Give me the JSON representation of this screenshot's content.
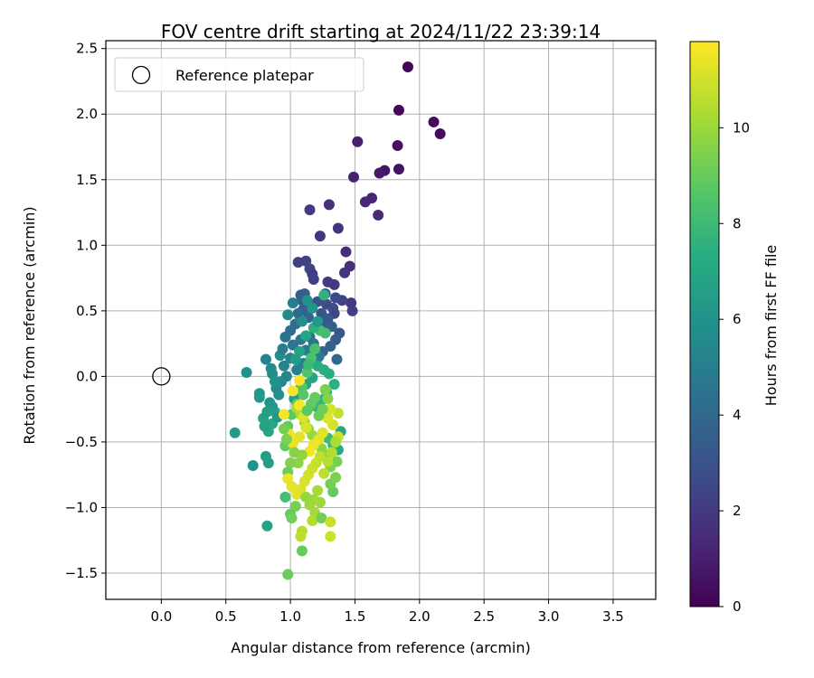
{
  "chart_data": {
    "type": "scatter",
    "title": "FOV centre drift starting at 2024/11/22 23:39:14",
    "xlabel": "Angular distance from reference (arcmin)",
    "ylabel": "Rotation from reference (arcmin)",
    "xlim": [
      -0.43,
      3.83
    ],
    "ylim": [
      -1.7,
      2.56
    ],
    "xticks": [
      0.0,
      0.5,
      1.0,
      1.5,
      2.0,
      2.5,
      3.0,
      3.5
    ],
    "xtick_labels": [
      "0.0",
      "0.5",
      "1.0",
      "1.5",
      "2.0",
      "2.5",
      "3.0",
      "3.5"
    ],
    "yticks": [
      -1.5,
      -1.0,
      -0.5,
      0.0,
      0.5,
      1.0,
      1.5,
      2.0,
      2.5
    ],
    "ytick_labels": [
      "−1.5",
      "−1.0",
      "−0.5",
      "0.0",
      "0.5",
      "1.0",
      "1.5",
      "2.0",
      "2.5"
    ],
    "grid": true,
    "legend": {
      "position": "top-left",
      "entries": [
        "Reference platepar"
      ]
    },
    "reference_point": {
      "x": 0.0,
      "y": 0.0
    },
    "colorbar": {
      "label": "Hours from first FF file",
      "range": [
        0,
        11.8
      ],
      "ticks": [
        0,
        2,
        4,
        6,
        8,
        10
      ],
      "tick_labels": [
        "0",
        "2",
        "4",
        "6",
        "8",
        "10"
      ],
      "colormap": "viridis"
    },
    "points": [
      [
        1.91,
        2.36,
        0.1
      ],
      [
        1.84,
        2.03,
        0.2
      ],
      [
        2.11,
        1.94,
        0.3
      ],
      [
        2.16,
        1.85,
        0.4
      ],
      [
        1.83,
        1.76,
        0.5
      ],
      [
        1.84,
        1.58,
        0.6
      ],
      [
        1.73,
        1.57,
        0.7
      ],
      [
        1.69,
        1.55,
        0.8
      ],
      [
        1.52,
        1.79,
        1.0
      ],
      [
        1.49,
        1.52,
        1.1
      ],
      [
        1.63,
        1.36,
        1.2
      ],
      [
        1.58,
        1.33,
        1.3
      ],
      [
        1.68,
        1.23,
        1.4
      ],
      [
        1.3,
        1.31,
        1.6
      ],
      [
        1.37,
        1.13,
        1.7
      ],
      [
        1.23,
        1.07,
        1.8
      ],
      [
        1.15,
        1.27,
        2.0
      ],
      [
        1.43,
        0.95,
        1.5
      ],
      [
        1.46,
        0.84,
        1.6
      ],
      [
        1.42,
        0.79,
        1.7
      ],
      [
        1.34,
        0.7,
        1.9
      ],
      [
        1.29,
        0.72,
        2.0
      ],
      [
        1.06,
        0.87,
        2.3
      ],
      [
        1.12,
        0.88,
        2.4
      ],
      [
        1.15,
        0.82,
        2.5
      ],
      [
        1.17,
        0.78,
        2.1
      ],
      [
        1.18,
        0.74,
        2.2
      ],
      [
        1.47,
        0.56,
        2.0
      ],
      [
        1.48,
        0.5,
        2.2
      ],
      [
        1.4,
        0.58,
        2.4
      ],
      [
        1.35,
        0.6,
        2.6
      ],
      [
        1.33,
        0.52,
        2.8
      ],
      [
        1.34,
        0.48,
        2.5
      ],
      [
        1.28,
        0.55,
        2.7
      ],
      [
        1.27,
        0.63,
        2.9
      ],
      [
        1.21,
        0.57,
        3.0
      ],
      [
        1.24,
        0.48,
        3.1
      ],
      [
        1.29,
        0.44,
        3.2
      ],
      [
        1.26,
        0.4,
        3.3
      ],
      [
        1.08,
        0.62,
        3.4
      ],
      [
        1.11,
        0.63,
        3.5
      ],
      [
        1.09,
        0.58,
        3.6
      ],
      [
        1.1,
        0.51,
        3.7
      ],
      [
        1.14,
        0.45,
        3.8
      ],
      [
        1.32,
        0.38,
        3.5
      ],
      [
        1.38,
        0.33,
        3.2
      ],
      [
        1.35,
        0.28,
        3.4
      ],
      [
        1.31,
        0.23,
        3.6
      ],
      [
        1.25,
        0.19,
        3.8
      ],
      [
        1.36,
        0.13,
        4.0
      ],
      [
        1.06,
        0.48,
        4.1
      ],
      [
        1.04,
        0.4,
        4.2
      ],
      [
        1.0,
        0.35,
        4.3
      ],
      [
        0.96,
        0.3,
        4.5
      ],
      [
        1.02,
        0.24,
        4.6
      ],
      [
        1.08,
        0.28,
        4.7
      ],
      [
        1.12,
        0.2,
        4.8
      ],
      [
        1.15,
        0.3,
        4.4
      ],
      [
        1.18,
        0.25,
        4.6
      ],
      [
        1.22,
        0.15,
        4.9
      ],
      [
        1.1,
        0.1,
        5.0
      ],
      [
        1.05,
        0.05,
        5.1
      ],
      [
        1.0,
        0.14,
        5.2
      ],
      [
        0.95,
        0.08,
        5.3
      ],
      [
        0.97,
        0.0,
        5.4
      ],
      [
        0.93,
        -0.04,
        5.5
      ],
      [
        0.89,
        -0.09,
        5.6
      ],
      [
        0.92,
        0.16,
        5.7
      ],
      [
        0.98,
        0.47,
        5.5
      ],
      [
        0.81,
        0.13,
        5.2
      ],
      [
        0.85,
        0.06,
        5.6
      ],
      [
        0.86,
        0.02,
        5.8
      ],
      [
        0.88,
        -0.04,
        6.0
      ],
      [
        0.84,
        -0.2,
        6.1
      ],
      [
        0.76,
        -0.13,
        6.2
      ],
      [
        0.76,
        -0.16,
        6.3
      ],
      [
        0.66,
        0.03,
        5.9
      ],
      [
        0.57,
        -0.43,
        6.4
      ],
      [
        0.71,
        -0.68,
        6.0
      ],
      [
        0.81,
        -0.61,
        6.5
      ],
      [
        0.83,
        -0.66,
        6.6
      ],
      [
        0.82,
        -1.14,
        6.7
      ],
      [
        0.79,
        -0.32,
        6.8
      ],
      [
        0.83,
        -0.42,
        6.9
      ],
      [
        0.86,
        -0.36,
        7.0
      ],
      [
        0.88,
        -0.27,
        7.1
      ],
      [
        0.9,
        -0.31,
        6.2
      ],
      [
        1.03,
        -0.17,
        6.4
      ],
      [
        1.07,
        -0.1,
        6.6
      ],
      [
        1.12,
        -0.06,
        6.8
      ],
      [
        1.17,
        -0.01,
        7.0
      ],
      [
        1.21,
        0.08,
        7.2
      ],
      [
        1.26,
        0.05,
        7.3
      ],
      [
        1.3,
        0.02,
        7.4
      ],
      [
        1.34,
        -0.06,
        7.5
      ],
      [
        1.28,
        -0.12,
        7.6
      ],
      [
        1.24,
        -0.18,
        7.7
      ],
      [
        1.2,
        -0.23,
        7.8
      ],
      [
        1.39,
        -0.42,
        7.0
      ],
      [
        1.37,
        -0.56,
        7.2
      ],
      [
        1.33,
        -0.52,
        7.9
      ],
      [
        1.29,
        -0.47,
        8.0
      ],
      [
        1.26,
        0.62,
        7.6
      ],
      [
        1.27,
        0.33,
        8.1
      ],
      [
        1.23,
        0.35,
        8.2
      ],
      [
        1.19,
        0.21,
        8.3
      ],
      [
        1.16,
        0.14,
        8.4
      ],
      [
        1.13,
        0.03,
        8.5
      ],
      [
        1.09,
        -0.08,
        8.6
      ],
      [
        1.05,
        -0.21,
        8.7
      ],
      [
        1.01,
        -0.29,
        8.8
      ],
      [
        0.98,
        -0.38,
        8.9
      ],
      [
        0.96,
        -0.53,
        9.0
      ],
      [
        0.98,
        -0.73,
        9.1
      ],
      [
        0.96,
        -0.92,
        8.2
      ],
      [
        1.0,
        -1.05,
        8.9
      ],
      [
        1.01,
        -1.08,
        9.2
      ],
      [
        1.04,
        -0.99,
        9.3
      ],
      [
        1.09,
        -1.33,
        9.0
      ],
      [
        0.98,
        -1.51,
        9.1
      ],
      [
        1.33,
        -0.88,
        9.0
      ],
      [
        1.31,
        -0.82,
        9.2
      ],
      [
        1.36,
        -0.65,
        9.3
      ],
      [
        1.35,
        -0.77,
        9.4
      ],
      [
        1.31,
        -0.69,
        9.5
      ],
      [
        1.28,
        -0.6,
        9.6
      ],
      [
        1.24,
        -0.55,
        9.7
      ],
      [
        1.2,
        -0.51,
        9.8
      ],
      [
        1.17,
        -0.45,
        9.9
      ],
      [
        1.14,
        -0.4,
        10.0
      ],
      [
        1.11,
        -0.35,
        10.1
      ],
      [
        1.08,
        -0.29,
        10.2
      ],
      [
        1.05,
        -0.24,
        10.3
      ],
      [
        1.27,
        -0.1,
        9.4
      ],
      [
        1.29,
        -0.17,
        9.6
      ],
      [
        1.23,
        -0.96,
        10.0
      ],
      [
        1.19,
        -1.04,
        10.2
      ],
      [
        1.17,
        -1.1,
        10.4
      ],
      [
        1.24,
        -1.08,
        9.2
      ],
      [
        1.09,
        -1.18,
        10.5
      ],
      [
        1.08,
        -1.22,
        10.6
      ],
      [
        1.31,
        -1.11,
        10.8
      ],
      [
        1.31,
        -1.22,
        10.9
      ],
      [
        1.37,
        -0.28,
        10.7
      ],
      [
        1.37,
        -0.46,
        10.9
      ],
      [
        1.33,
        -0.37,
        11.0
      ],
      [
        1.31,
        -0.25,
        11.1
      ],
      [
        1.29,
        -0.32,
        11.2
      ],
      [
        1.25,
        -0.43,
        11.3
      ],
      [
        1.22,
        -0.48,
        11.4
      ],
      [
        1.18,
        -0.52,
        11.5
      ],
      [
        1.15,
        -0.57,
        11.6
      ],
      [
        1.12,
        -0.39,
        11.1
      ],
      [
        1.1,
        -0.31,
        11.2
      ],
      [
        1.07,
        -0.46,
        11.3
      ],
      [
        1.02,
        -0.51,
        11.4
      ],
      [
        0.99,
        -0.44,
        11.5
      ],
      [
        0.95,
        -0.29,
        11.6
      ],
      [
        1.07,
        -0.22,
        11.7
      ],
      [
        1.02,
        -0.11,
        11.7
      ],
      [
        1.07,
        -0.03,
        11.7
      ],
      [
        0.98,
        -0.78,
        11.5
      ],
      [
        1.01,
        -0.84,
        11.4
      ],
      [
        1.05,
        -0.9,
        11.3
      ],
      [
        1.08,
        -0.86,
        11.2
      ],
      [
        1.11,
        -0.8,
        11.1
      ],
      [
        1.14,
        -0.75,
        11.0
      ],
      [
        1.17,
        -0.7,
        10.9
      ],
      [
        1.2,
        -0.66,
        10.8
      ],
      [
        1.23,
        -0.61,
        10.7
      ],
      [
        1.26,
        -0.74,
        10.6
      ],
      [
        1.29,
        -0.65,
        10.5
      ],
      [
        1.32,
        -0.58,
        10.4
      ],
      [
        1.35,
        -0.5,
        10.3
      ],
      [
        1.21,
        -0.87,
        10.2
      ],
      [
        1.18,
        -0.94,
        10.1
      ],
      [
        1.15,
        -0.98,
        10.0
      ],
      [
        1.12,
        -0.92,
        9.9
      ],
      [
        1.09,
        -0.6,
        9.8
      ],
      [
        1.06,
        -0.66,
        9.7
      ],
      [
        1.03,
        -0.58,
        9.6
      ],
      [
        1.0,
        -0.66,
        9.5
      ],
      [
        0.97,
        -0.48,
        9.4
      ],
      [
        0.95,
        -0.4,
        9.3
      ],
      [
        1.25,
        -0.25,
        9.2
      ],
      [
        1.22,
        -0.3,
        9.1
      ],
      [
        1.19,
        -0.16,
        9.0
      ],
      [
        1.16,
        -0.21,
        8.9
      ],
      [
        1.13,
        -0.26,
        8.8
      ],
      [
        1.1,
        -0.14,
        8.7
      ],
      [
        1.14,
        0.09,
        7.9
      ],
      [
        1.18,
        0.37,
        7.5
      ],
      [
        1.12,
        0.31,
        6.9
      ],
      [
        1.07,
        0.19,
        6.7
      ],
      [
        1.04,
        0.13,
        6.5
      ],
      [
        1.21,
        0.42,
        6.3
      ],
      [
        1.17,
        0.52,
        6.1
      ],
      [
        1.13,
        0.58,
        5.9
      ],
      [
        1.09,
        0.42,
        5.7
      ],
      [
        1.02,
        0.56,
        5.0
      ],
      [
        0.94,
        0.21,
        5.0
      ],
      [
        0.91,
        -0.14,
        5.8
      ],
      [
        0.86,
        -0.23,
        6.3
      ],
      [
        0.82,
        -0.27,
        6.6
      ],
      [
        0.8,
        -0.38,
        6.7
      ]
    ]
  }
}
